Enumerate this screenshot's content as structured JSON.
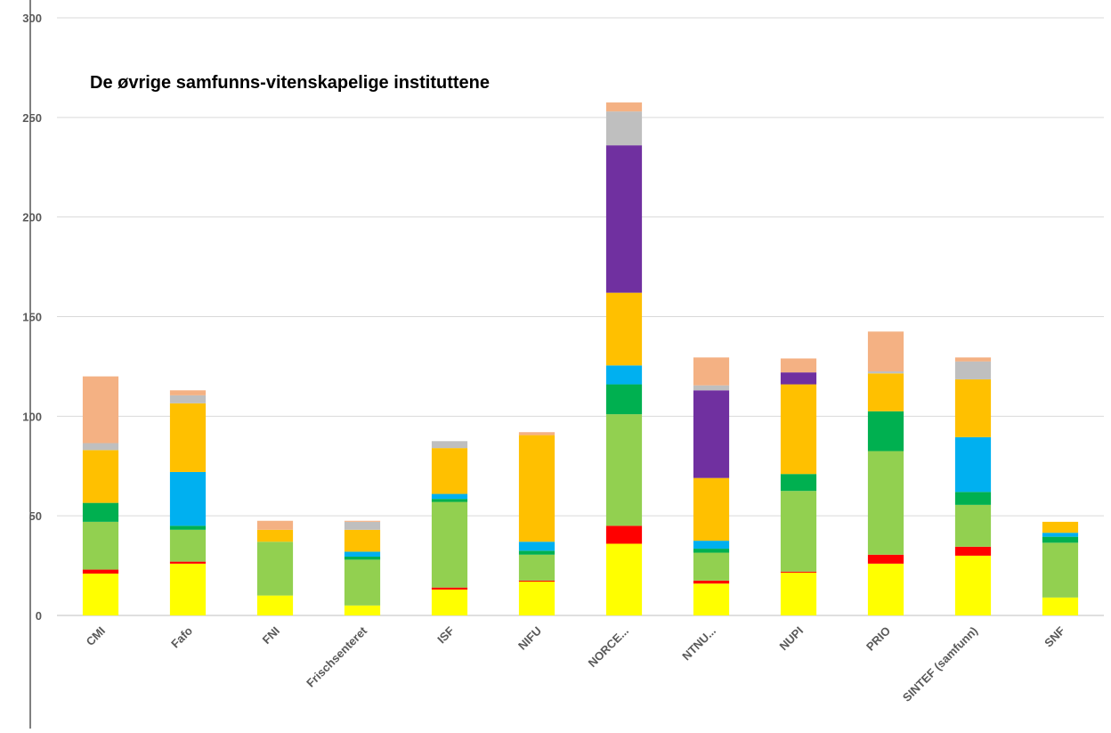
{
  "chart_data": {
    "type": "bar",
    "stacked": true,
    "title": "De øvrige samfunns-vitenskapelige instituttene",
    "xlabel": "",
    "ylabel": "",
    "ylim": [
      0,
      300
    ],
    "yticks": [
      0,
      50,
      100,
      150,
      200,
      250,
      300
    ],
    "grid": true,
    "legend": "none",
    "categories": [
      "CMI",
      "Fafo",
      "FNI",
      "Frischsenteret",
      "ISF",
      "NIFU",
      "NORCE...",
      "NTNU...",
      "NUPI",
      "PRIO",
      "SINTEF (samfunn)",
      "SNF"
    ],
    "series": [
      {
        "color": "#FFFF00",
        "values": [
          21,
          26,
          10,
          5,
          13,
          17,
          36,
          16,
          21.5,
          26,
          30,
          9
        ]
      },
      {
        "color": "#FF0000",
        "values": [
          2,
          1,
          0,
          0,
          1,
          0.5,
          9,
          1.5,
          0.5,
          4.5,
          4.5,
          0
        ]
      },
      {
        "color": "#92D050",
        "values": [
          24,
          16,
          27,
          23,
          43,
          13,
          56,
          14,
          40.5,
          52,
          21,
          27.5
        ]
      },
      {
        "color": "#00B050",
        "values": [
          9.5,
          2,
          0,
          1.5,
          1.5,
          2,
          15,
          2,
          8.5,
          20,
          6.5,
          3
        ]
      },
      {
        "color": "#00B0F0",
        "values": [
          0,
          27,
          0,
          2.5,
          2.5,
          4.5,
          9.5,
          4,
          0,
          0,
          27.5,
          2
        ]
      },
      {
        "color": "#FFC000",
        "values": [
          26.5,
          34.5,
          6,
          11,
          23,
          53.5,
          36.5,
          31.5,
          45,
          19,
          29,
          5.5
        ]
      },
      {
        "color": "#7030A0",
        "values": [
          0,
          0,
          0,
          0,
          0,
          0,
          74,
          44,
          6,
          0,
          0,
          0
        ]
      },
      {
        "color": "#BFBFBF",
        "values": [
          3.5,
          4,
          0,
          4,
          3.5,
          0,
          17,
          2.5,
          0,
          1,
          9,
          0
        ]
      },
      {
        "color": "#F4B183",
        "values": [
          33.5,
          2.5,
          4.5,
          0.5,
          0,
          1.5,
          4.5,
          14,
          7,
          20,
          2,
          0
        ]
      }
    ]
  }
}
